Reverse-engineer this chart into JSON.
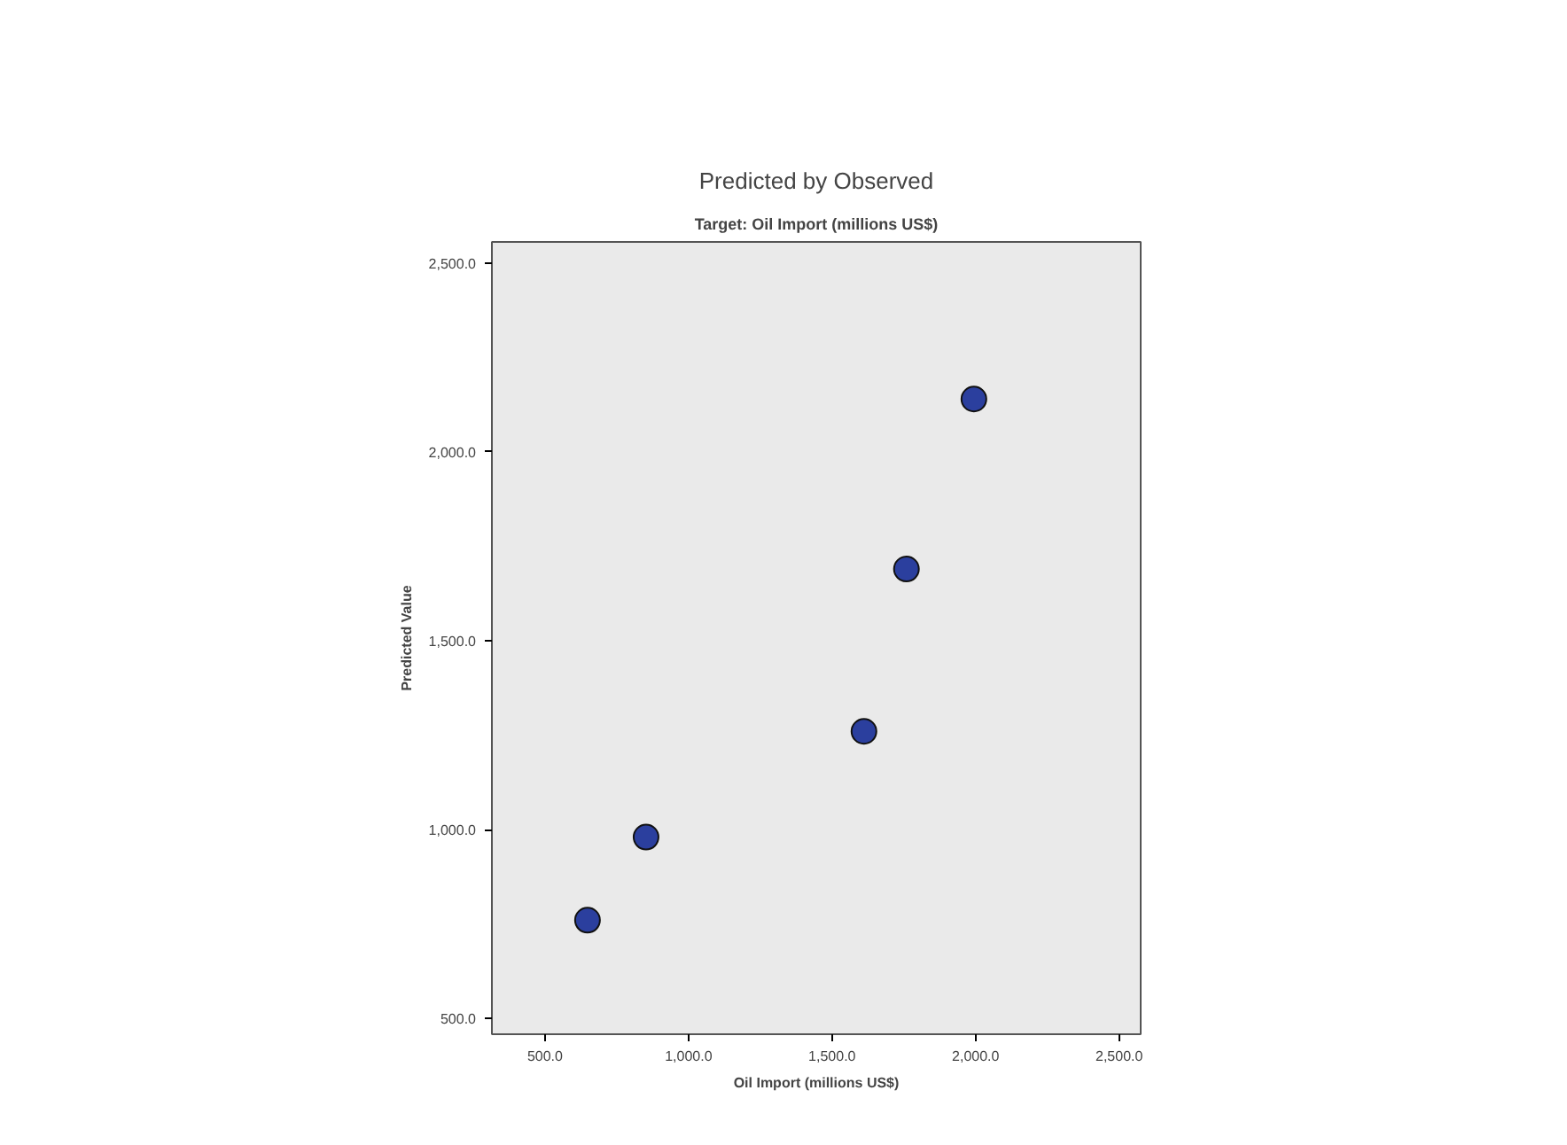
{
  "chart_data": {
    "type": "scatter",
    "title": "Predicted by Observed",
    "subtitle": "Target: Oil Import (millions US$)",
    "xlabel": "Oil Import (millions US$)",
    "ylabel": "Predicted Value",
    "x": [
      648,
      852,
      1611,
      1759,
      1994
    ],
    "series": [
      {
        "color": "#2b3f9e",
        "values": [
          760,
          980,
          1260,
          1690,
          2140
        ]
      }
    ],
    "xlim": [
      315,
      2575
    ],
    "ylim": [
      458,
      2556
    ],
    "xticks": [
      {
        "value": 500,
        "label": "500.0"
      },
      {
        "value": 1000,
        "label": "1,000.0"
      },
      {
        "value": 1500,
        "label": "1,500.0"
      },
      {
        "value": 2000,
        "label": "2,000.0"
      },
      {
        "value": 2500,
        "label": "2,500.0"
      }
    ],
    "yticks": [
      {
        "value": 500,
        "label": "500.0"
      },
      {
        "value": 1000,
        "label": "1,000.0"
      },
      {
        "value": 1500,
        "label": "1,500.0"
      },
      {
        "value": 2000,
        "label": "2,000.0"
      },
      {
        "value": 2500,
        "label": "2,500.0"
      }
    ],
    "grid": false,
    "marker": "circle"
  }
}
